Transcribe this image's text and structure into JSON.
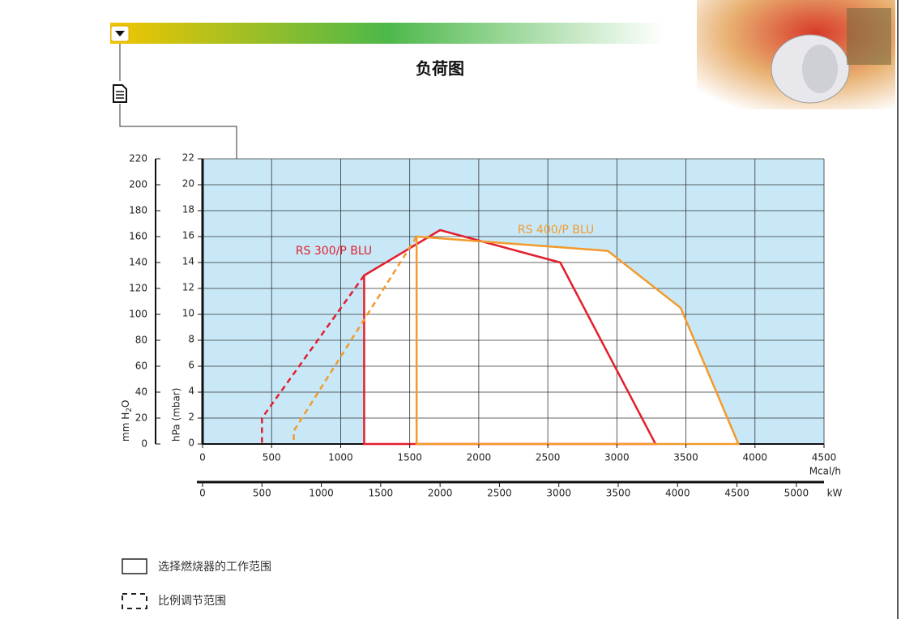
{
  "header": {
    "title": "负荷图"
  },
  "chart_data": {
    "type": "line",
    "x_label": "Mcal/h",
    "x2_label": "kW",
    "y_label": "hPa (mbar)",
    "y2_label": [
      "mm H",
      "2",
      "O"
    ],
    "xlim": [
      0,
      4500
    ],
    "xticks": [
      0,
      500,
      1000,
      1500,
      2000,
      2500,
      3000,
      3500,
      4000,
      4500
    ],
    "x2lim": [
      0,
      5233
    ],
    "x2ticks": [
      0,
      500,
      1000,
      1500,
      2000,
      2500,
      3000,
      3500,
      4000,
      4500,
      5000
    ],
    "ylim": [
      0,
      22
    ],
    "yticks": [
      0,
      2,
      4,
      6,
      8,
      10,
      12,
      14,
      16,
      18,
      20,
      22
    ],
    "y2lim": [
      0,
      220
    ],
    "y2ticks": [
      0,
      20,
      40,
      60,
      80,
      100,
      120,
      140,
      160,
      180,
      200,
      220
    ],
    "grid": true,
    "background": "#c8e8f8",
    "series": [
      {
        "name": "RS 300/P BLU",
        "color": "#e31e2d",
        "x": [
          1170,
          1170,
          1720,
          2590,
          3280
        ],
        "values": [
          0,
          13,
          16.5,
          14,
          0
        ],
        "modulation": {
          "x": [
            1170,
            430,
            430
          ],
          "values": [
            13,
            2,
            0
          ]
        }
      },
      {
        "name": "RS 400/P BLU",
        "color": "#f39a2b",
        "x": [
          1550,
          1550,
          2934,
          3462,
          3880
        ],
        "values": [
          0,
          16,
          14.9,
          10.5,
          0
        ],
        "modulation": {
          "x": [
            1550,
            660,
            660
          ],
          "values": [
            16,
            1,
            0
          ]
        }
      }
    ]
  },
  "legend": {
    "working_range": "选择燃烧器的工作范围",
    "modulation_range": "比例调节范围"
  }
}
